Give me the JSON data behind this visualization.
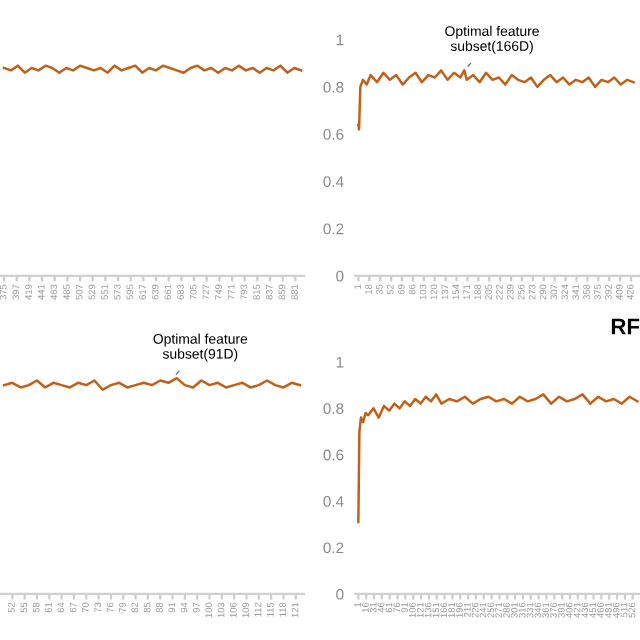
{
  "chart_data": [
    {
      "type": "line",
      "tick_labels": "x",
      "ylim": [
        0,
        1
      ],
      "xlim": [
        368,
        896
      ],
      "xticks": [
        375,
        397,
        419,
        441,
        463,
        485,
        507,
        529,
        551,
        573,
        595,
        617,
        639,
        661,
        683,
        705,
        727,
        749,
        771,
        793,
        815,
        837,
        859,
        881
      ],
      "x": [
        375,
        387,
        399,
        411,
        423,
        435,
        447,
        459,
        471,
        483,
        495,
        507,
        519,
        531,
        543,
        555,
        567,
        579,
        591,
        603,
        615,
        627,
        639,
        651,
        663,
        675,
        687,
        699,
        711,
        723,
        735,
        747,
        759,
        771,
        783,
        795,
        807,
        819,
        831,
        843,
        855,
        867,
        879,
        891
      ],
      "series": [
        {
          "color": "#c0611a",
          "values": [
            0.88,
            0.87,
            0.89,
            0.86,
            0.88,
            0.87,
            0.89,
            0.88,
            0.86,
            0.88,
            0.87,
            0.89,
            0.88,
            0.87,
            0.88,
            0.86,
            0.89,
            0.87,
            0.88,
            0.89,
            0.86,
            0.88,
            0.87,
            0.89,
            0.88,
            0.87,
            0.86,
            0.88,
            0.89,
            0.87,
            0.88,
            0.86,
            0.88,
            0.87,
            0.89,
            0.87,
            0.88,
            0.86,
            0.88,
            0.87,
            0.89,
            0.86,
            0.88,
            0.87
          ]
        }
      ]
    },
    {
      "type": "line",
      "ylim": [
        0,
        1
      ],
      "yticks": [
        0,
        0.2,
        0.4,
        0.6,
        0.8,
        1
      ],
      "xlim": [
        -4,
        440
      ],
      "xticks": [
        1,
        18,
        35,
        52,
        69,
        86,
        103,
        120,
        137,
        154,
        171,
        188,
        205,
        222,
        239,
        256,
        273,
        290,
        307,
        324,
        341,
        358,
        375,
        392,
        409,
        426
      ],
      "x": [
        1,
        2,
        4,
        8,
        14,
        20,
        30,
        40,
        50,
        60,
        70,
        80,
        90,
        100,
        110,
        120,
        130,
        140,
        150,
        160,
        166,
        170,
        180,
        190,
        200,
        210,
        220,
        230,
        240,
        250,
        260,
        270,
        280,
        290,
        300,
        310,
        320,
        330,
        340,
        350,
        360,
        370,
        380,
        390,
        400,
        410,
        420,
        430
      ],
      "series": [
        {
          "color": "#c0611a",
          "values": [
            0.64,
            0.62,
            0.8,
            0.83,
            0.81,
            0.85,
            0.82,
            0.86,
            0.83,
            0.85,
            0.81,
            0.84,
            0.86,
            0.82,
            0.85,
            0.84,
            0.87,
            0.83,
            0.86,
            0.84,
            0.87,
            0.83,
            0.85,
            0.82,
            0.86,
            0.83,
            0.84,
            0.81,
            0.85,
            0.83,
            0.82,
            0.84,
            0.8,
            0.83,
            0.85,
            0.82,
            0.84,
            0.81,
            0.83,
            0.82,
            0.84,
            0.8,
            0.83,
            0.82,
            0.84,
            0.81,
            0.83,
            0.82
          ]
        }
      ],
      "annotations": [
        {
          "text": "Optimal feature\nsubset(166D)",
          "x": 166,
          "y": 0.87
        }
      ]
    },
    {
      "type": "line",
      "tick_labels": "x",
      "ylim": [
        0,
        1
      ],
      "xlim": [
        49,
        123
      ],
      "xticks": [
        52,
        55,
        58,
        61,
        64,
        67,
        70,
        73,
        76,
        79,
        82,
        85,
        88,
        91,
        94,
        97,
        100,
        103,
        106,
        109,
        112,
        115,
        118,
        121
      ],
      "x": [
        50,
        52,
        54,
        56,
        58,
        60,
        62,
        64,
        66,
        68,
        70,
        72,
        74,
        76,
        78,
        80,
        82,
        84,
        86,
        88,
        90,
        92,
        94,
        96,
        98,
        100,
        102,
        104,
        106,
        108,
        110,
        112,
        114,
        116,
        118,
        120,
        122
      ],
      "series": [
        {
          "color": "#c0611a",
          "values": [
            0.9,
            0.91,
            0.89,
            0.9,
            0.92,
            0.89,
            0.91,
            0.9,
            0.89,
            0.91,
            0.9,
            0.92,
            0.88,
            0.9,
            0.91,
            0.89,
            0.9,
            0.91,
            0.9,
            0.92,
            0.91,
            0.93,
            0.9,
            0.89,
            0.92,
            0.9,
            0.91,
            0.89,
            0.9,
            0.91,
            0.89,
            0.9,
            0.92,
            0.9,
            0.89,
            0.91,
            0.9
          ]
        }
      ],
      "annotations": [
        {
          "text": "Optimal feature\nsubset(91D)",
          "x": 91,
          "y": 0.93
        }
      ]
    },
    {
      "type": "line",
      "title": "RF",
      "ylim": [
        0,
        1
      ],
      "yticks": [
        0,
        0.2,
        0.4,
        0.6,
        0.8,
        1
      ],
      "xlim": [
        -5,
        540
      ],
      "xticks": [
        1,
        16,
        31,
        46,
        61,
        76,
        91,
        106,
        121,
        136,
        151,
        166,
        181,
        196,
        211,
        226,
        241,
        256,
        271,
        286,
        301,
        316,
        331,
        346,
        361,
        376,
        391,
        406,
        421,
        436,
        451,
        466,
        481,
        496,
        511,
        526
      ],
      "x": [
        1,
        3,
        6,
        10,
        15,
        20,
        30,
        40,
        50,
        60,
        70,
        80,
        90,
        100,
        110,
        120,
        130,
        140,
        150,
        160,
        175,
        190,
        205,
        220,
        235,
        250,
        265,
        280,
        295,
        310,
        325,
        340,
        355,
        370,
        385,
        400,
        415,
        430,
        445,
        460,
        475,
        490,
        505,
        520,
        535
      ],
      "series": [
        {
          "color": "#c0611a",
          "values": [
            0.31,
            0.7,
            0.76,
            0.74,
            0.78,
            0.77,
            0.8,
            0.76,
            0.81,
            0.79,
            0.82,
            0.8,
            0.83,
            0.81,
            0.84,
            0.82,
            0.85,
            0.83,
            0.86,
            0.82,
            0.84,
            0.83,
            0.85,
            0.82,
            0.84,
            0.85,
            0.83,
            0.84,
            0.82,
            0.85,
            0.83,
            0.84,
            0.86,
            0.82,
            0.85,
            0.83,
            0.84,
            0.86,
            0.82,
            0.85,
            0.83,
            0.84,
            0.82,
            0.85,
            0.83
          ]
        }
      ]
    }
  ]
}
